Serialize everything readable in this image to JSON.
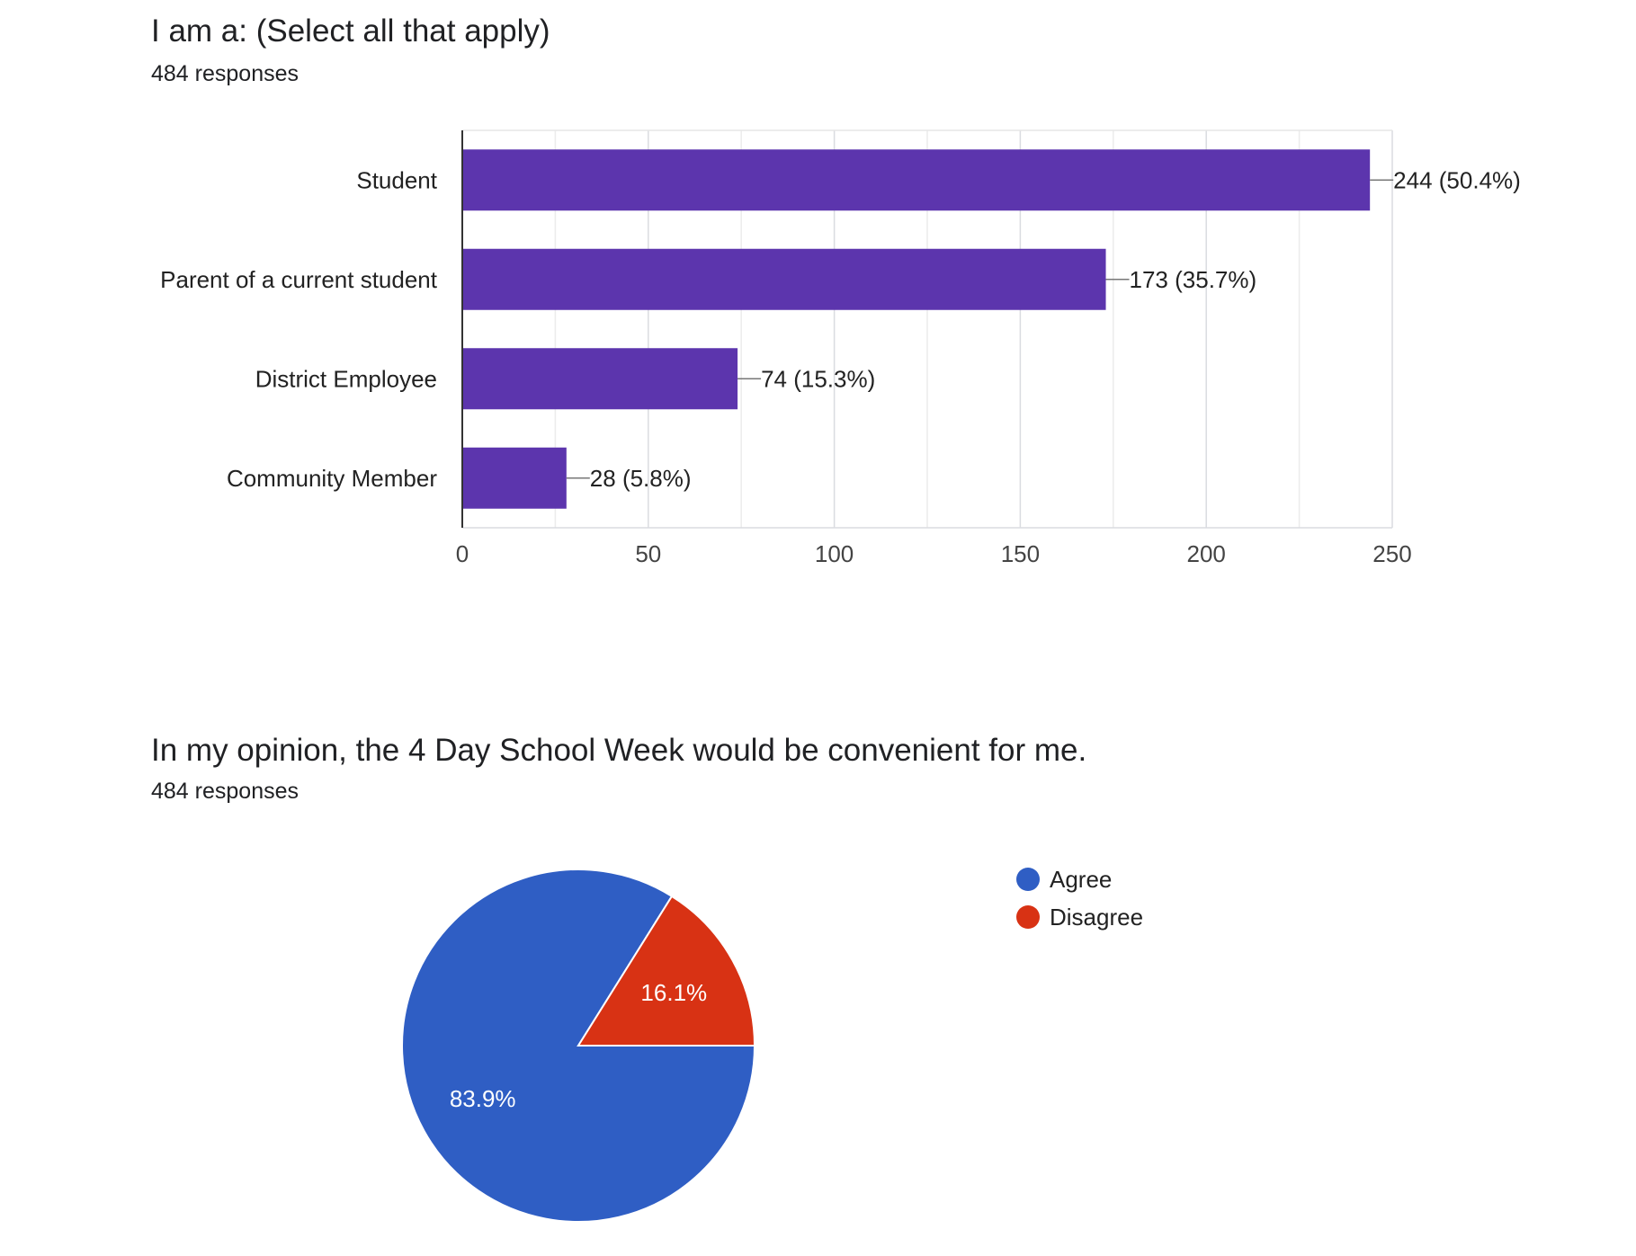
{
  "charts": [
    {
      "title": "I am a: (Select all that apply)",
      "subtitle": "484 responses"
    },
    {
      "title": "In my opinion, the 4 Day School Week would be convenient for me.",
      "subtitle": "484 responses"
    }
  ],
  "chart_data": [
    {
      "type": "bar",
      "orientation": "horizontal",
      "title": "I am a: (Select all that apply)",
      "subtitle": "484 responses",
      "categories": [
        "Student",
        "Parent of a current student",
        "District Employee",
        "Community Member"
      ],
      "values": [
        244,
        173,
        74,
        28
      ],
      "data_labels": [
        "244 (50.4%)",
        "173 (35.7%)",
        "74 (15.3%)",
        "28 (5.8%)"
      ],
      "xlim": [
        0,
        250
      ],
      "x_ticks": [
        0,
        50,
        100,
        150,
        200,
        250
      ],
      "grid": true,
      "bar_color": "#5c35ad"
    },
    {
      "type": "pie",
      "title": "In my opinion, the 4 Day School Week would be convenient for me.",
      "subtitle": "484 responses",
      "labels": [
        "Agree",
        "Disagree"
      ],
      "values": [
        83.9,
        16.1
      ],
      "data_labels": [
        "83.9%",
        "16.1%"
      ],
      "colors": [
        "#2f5ec4",
        "#d83214"
      ],
      "legend": "right"
    }
  ]
}
